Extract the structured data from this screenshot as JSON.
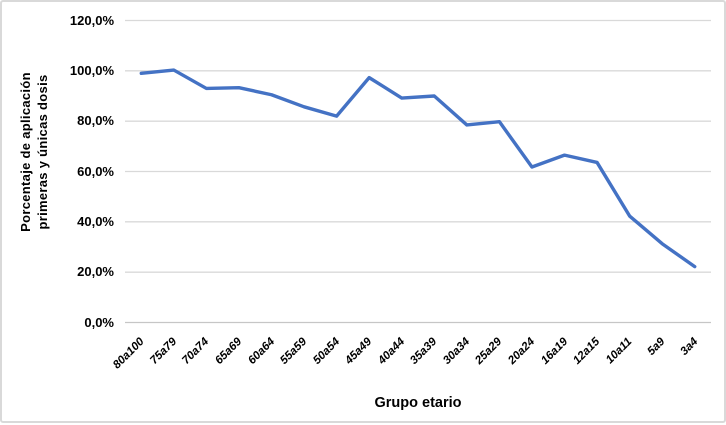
{
  "chart_data": {
    "type": "line",
    "title": "",
    "categories": [
      "80a100",
      "75a79",
      "70a74",
      "65a69",
      "60a64",
      "55a59",
      "50a54",
      "45a49",
      "40a44",
      "35a39",
      "30a34",
      "25a29",
      "20a24",
      "16a19",
      "12a15",
      "10a11",
      "5a9",
      "3a4"
    ],
    "series": [
      {
        "name": "Porcentaje de aplicación primeras y únicas dosis",
        "values": [
          99.0,
          100.3,
          93.0,
          93.3,
          90.5,
          85.7,
          82.0,
          97.3,
          89.2,
          90.0,
          78.5,
          79.8,
          61.8,
          66.5,
          63.6,
          42.3,
          31.3,
          22.2
        ]
      }
    ],
    "xlabel": "Grupo etario",
    "ylabel_lines": {
      "0": "Porcentaje de aplicación",
      "1": "primeras y únicas dosis"
    },
    "ylim": [
      0,
      120
    ],
    "ytick_step": 20,
    "ytick_labels": [
      "0,0%",
      "20,0%",
      "40,0%",
      "60,0%",
      "80,0%",
      "100,0%",
      "120,0%"
    ],
    "grid": true,
    "legend": "none",
    "colors": {
      "line": "#4472C4",
      "gridline": "#d9d9d9",
      "axis_line": "#c6c6c6",
      "text": "#000000"
    }
  }
}
